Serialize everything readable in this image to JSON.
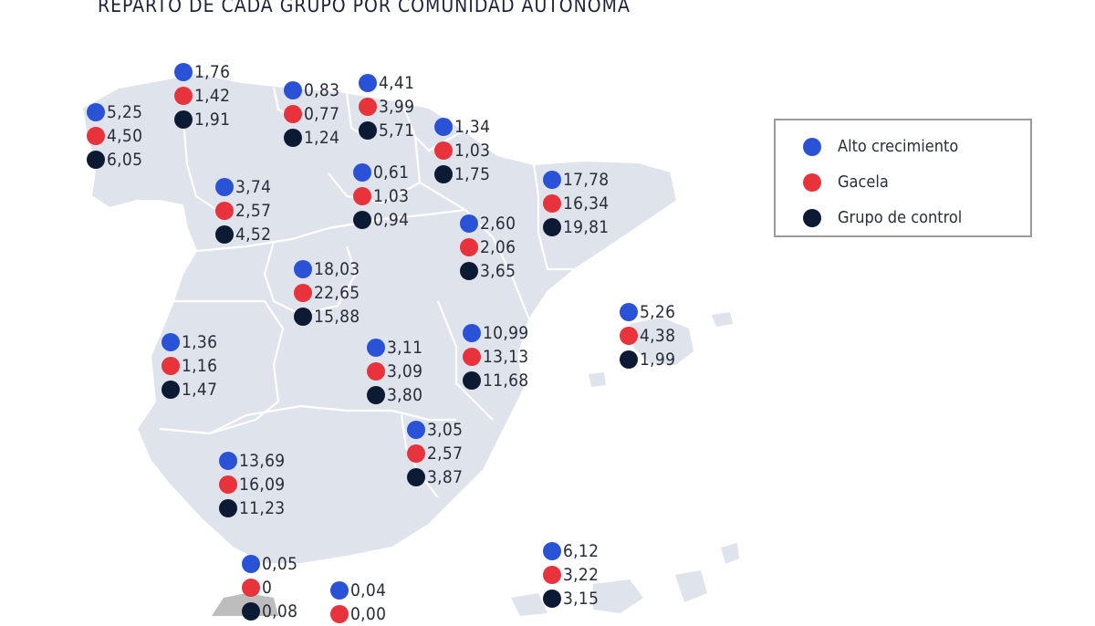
{
  "title": "REPARTO DE CADA GRUPO POR COMUNIDAD AUTÓNOMA",
  "colors": {
    "alto": "#2a52d6",
    "gacela": "#e8323c",
    "control": "#0c1a33"
  },
  "legend": [
    {
      "key": "alto",
      "label": "Alto crecimiento"
    },
    {
      "key": "gacela",
      "label": "Gacela"
    },
    {
      "key": "control",
      "label": "Grupo de control"
    }
  ],
  "regions": [
    {
      "id": "galicia",
      "values": [
        "5,25",
        "4,50",
        "6,05"
      ]
    },
    {
      "id": "asturias",
      "values": [
        "1,76",
        "1,42",
        "1,91"
      ]
    },
    {
      "id": "cantabria",
      "values": [
        "0,83",
        "0,77",
        "1,24"
      ]
    },
    {
      "id": "pais-vasco",
      "values": [
        "4,41",
        "3,99",
        "5,71"
      ]
    },
    {
      "id": "navarra",
      "values": [
        "1,34",
        "1,03",
        "1,75"
      ]
    },
    {
      "id": "la-rioja",
      "values": [
        "0,61",
        "1,03",
        "0,94"
      ]
    },
    {
      "id": "castilla-leon",
      "values": [
        "3,74",
        "2,57",
        "4,52"
      ]
    },
    {
      "id": "cataluna",
      "values": [
        "17,78",
        "16,34",
        "19,81"
      ]
    },
    {
      "id": "aragon",
      "values": [
        "2,60",
        "2,06",
        "3,65"
      ]
    },
    {
      "id": "madrid",
      "values": [
        "18,03",
        "22,65",
        "15,88"
      ]
    },
    {
      "id": "baleares",
      "values": [
        "5,26",
        "4,38",
        "1,99"
      ]
    },
    {
      "id": "extremadura",
      "values": [
        "1,36",
        "1,16",
        "1,47"
      ]
    },
    {
      "id": "castilla-la-mancha",
      "values": [
        "3,11",
        "3,09",
        "3,80"
      ]
    },
    {
      "id": "comunidad-valenciana",
      "values": [
        "10,99",
        "13,13",
        "11,68"
      ]
    },
    {
      "id": "murcia",
      "values": [
        "3,05",
        "2,57",
        "3,87"
      ]
    },
    {
      "id": "andalucia",
      "values": [
        "13,69",
        "16,09",
        "11,23"
      ]
    },
    {
      "id": "canarias",
      "values": [
        "6,12",
        "3,22",
        "3,15"
      ]
    },
    {
      "id": "ceuta",
      "values": [
        "0,05",
        "0",
        "0,08"
      ]
    },
    {
      "id": "melilla",
      "values": [
        "0,04",
        "0,00",
        ""
      ]
    }
  ]
}
